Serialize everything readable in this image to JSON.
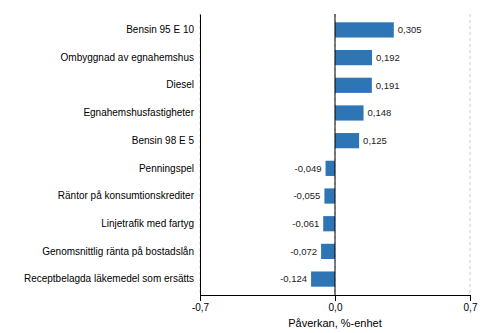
{
  "chart_data": {
    "type": "bar",
    "orientation": "horizontal",
    "categories": [
      "Receptbelagda läkemedel som ersätts",
      "Genomsnittlig ränta på bostadslån",
      "Linjetrafik med fartyg",
      "Räntor på konsumtionskrediter",
      "Penningspel",
      "Bensin 98 E 5",
      "Egnahemshusfastigheter",
      "Diesel",
      "Ombyggnad av egnahemshus",
      "Bensin 95 E 10"
    ],
    "values": [
      -0.124,
      -0.072,
      -0.061,
      -0.055,
      -0.049,
      0.125,
      0.148,
      0.191,
      0.192,
      0.305
    ],
    "value_labels": [
      "-0,124",
      "-0,072",
      "-0,061",
      "-0,055",
      "-0,049",
      "0,125",
      "0,148",
      "0,191",
      "0,192",
      "0,305"
    ],
    "data_labels": true,
    "color": "#2E75B6",
    "xlabel": "Påverkan, %-enhet",
    "xlim": [
      -0.7,
      0.7
    ],
    "xticks": [
      {
        "value": -0.7,
        "label": "-0,7"
      },
      {
        "value": 0.0,
        "label": "0,0"
      },
      {
        "value": 0.7,
        "label": "0,7"
      }
    ],
    "grid": true
  }
}
